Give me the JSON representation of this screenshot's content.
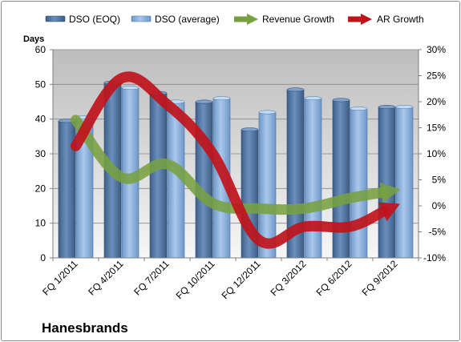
{
  "company": "Hanesbrands",
  "colors": {
    "dso_eoq": "#5a7ca7",
    "dso_average": "#8fb3dd",
    "revenue_growth": "#77a041",
    "ar_growth": "#c0141b",
    "plot_bg_top": "#bdbdbd",
    "plot_bg_bottom": "#f6f6f6"
  },
  "chart_data": {
    "type": "bar",
    "categories": [
      "FQ 1/2011",
      "FQ 4/2011",
      "FQ 7/2011",
      "FQ 10/2011",
      "FQ 12/2011",
      "FQ 3/2012",
      "FQ 6/2012",
      "FQ 9/2012"
    ],
    "ylabel": "Days",
    "ylim": [
      0,
      60
    ],
    "y_ticks": [
      "0",
      "10",
      "20",
      "30",
      "40",
      "50",
      "60"
    ],
    "y2lim": [
      -10,
      30
    ],
    "y2_ticks": [
      "-10%",
      "-5%",
      "0%",
      "5%",
      "10%",
      "15%",
      "20%",
      "25%",
      "30%"
    ],
    "gridlines": true,
    "legend_position": "top",
    "bar_series": [
      {
        "name": "DSO (EOQ)",
        "values": [
          39.5,
          50.5,
          47.5,
          45,
          37,
          48.5,
          45.5,
          43.5
        ]
      },
      {
        "name": "DSO (average)",
        "values": [
          40.5,
          49,
          45,
          46,
          42,
          46,
          43,
          43.5
        ]
      }
    ],
    "line_series": [
      {
        "name": "Revenue Growth",
        "axis": "secondary",
        "values": [
          16.5,
          5.5,
          8,
          0.5,
          -0.5,
          -0.5,
          1.5,
          3
        ]
      },
      {
        "name": "AR Growth",
        "axis": "secondary",
        "values": [
          11.5,
          24.5,
          19.5,
          10,
          -6.5,
          -4,
          -4,
          0
        ]
      }
    ]
  }
}
